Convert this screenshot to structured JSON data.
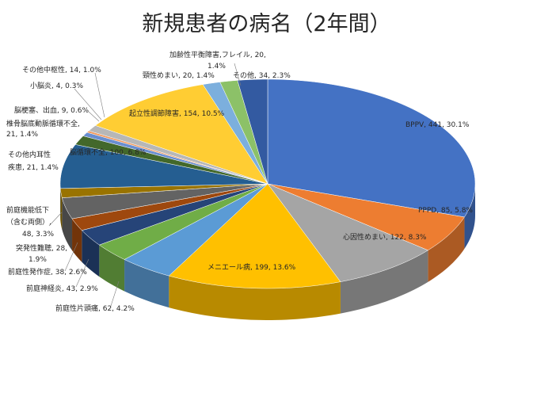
{
  "chart_data": {
    "type": "pie",
    "title": "新規患者の病名（2年間）",
    "start_category": "BPPV",
    "slices": [
      {
        "label": "BPPV, 441, 30.1%",
        "name": "BPPV",
        "value": 441,
        "percent": 30.1,
        "color": "#4472C4"
      },
      {
        "label": "PPPD, 85, 5.8%",
        "name": "PPPD",
        "value": 85,
        "percent": 5.8,
        "color": "#ED7D31"
      },
      {
        "label": "心因性めまい, 122, 8.3%",
        "name": "心因性めまい",
        "value": 122,
        "percent": 8.3,
        "color": "#A5A5A5"
      },
      {
        "label": "メニエール病, 199, 13.6%",
        "name": "メニエール病",
        "value": 199,
        "percent": 13.6,
        "color": "#FFC000"
      },
      {
        "label": "前庭性片頭痛, 62, 4.2%",
        "name": "前庭性片頭痛",
        "value": 62,
        "percent": 4.2,
        "color": "#5B9BD5"
      },
      {
        "label": "前庭神経炎, 43, 2.9%",
        "name": "前庭神経炎",
        "value": 43,
        "percent": 2.9,
        "color": "#70AD47"
      },
      {
        "label": "前庭性発作症, 38, 2.6%",
        "name": "前庭性発作症",
        "value": 38,
        "percent": 2.6,
        "color": "#264478"
      },
      {
        "label": "突発性難聴, 28, 1.9%",
        "name": "突発性難聴",
        "value": 28,
        "percent": 1.9,
        "color": "#9E480E"
      },
      {
        "label": "前庭機能低下（含む両側）, 48, 3.3%",
        "name": "前庭機能低下（含む両側）",
        "value": 48,
        "percent": 3.3,
        "color": "#636363"
      },
      {
        "label": "その他内耳性疾患, 21, 1.4%",
        "name": "その他内耳性疾患",
        "value": 21,
        "percent": 1.4,
        "color": "#997300"
      },
      {
        "label": "脳循環不全, 100, 6.8%",
        "name": "脳循環不全",
        "value": 100,
        "percent": 6.8,
        "color": "#255E91"
      },
      {
        "label": "椎骨脳底動脈循環不全, 21, 1.4%",
        "name": "椎骨脳底動脈循環不全",
        "value": 21,
        "percent": 1.4,
        "color": "#43682B"
      },
      {
        "label": "脳梗塞、出血, 9, 0.6%",
        "name": "脳梗塞、出血",
        "value": 9,
        "percent": 0.6,
        "color": "#698ED0"
      },
      {
        "label": "小脳炎, 4, 0.3%",
        "name": "小脳炎",
        "value": 4,
        "percent": 0.3,
        "color": "#F1975A"
      },
      {
        "label": "その他中枢性, 14, 1.0%",
        "name": "その他中枢性",
        "value": 14,
        "percent": 1.0,
        "color": "#B7B7B7"
      },
      {
        "label": "起立性調節障害, 154, 10.5%",
        "name": "起立性調節障害",
        "value": 154,
        "percent": 10.5,
        "color": "#FFCD33"
      },
      {
        "label": "加齢性平衡障害,フレイル, 20, 1.4%",
        "name": "加齢性平衡障害,フレイル",
        "value": 20,
        "percent": 1.4,
        "color": "#7CAFDD"
      },
      {
        "label": "頸性めまい, 20, 1.4%",
        "name": "頸性めまい",
        "value": 20,
        "percent": 1.4,
        "color": "#8CC168"
      },
      {
        "label": "その他, 34, 2.3%",
        "name": "その他",
        "value": 34,
        "percent": 2.3,
        "color": "#335AA1"
      }
    ]
  }
}
